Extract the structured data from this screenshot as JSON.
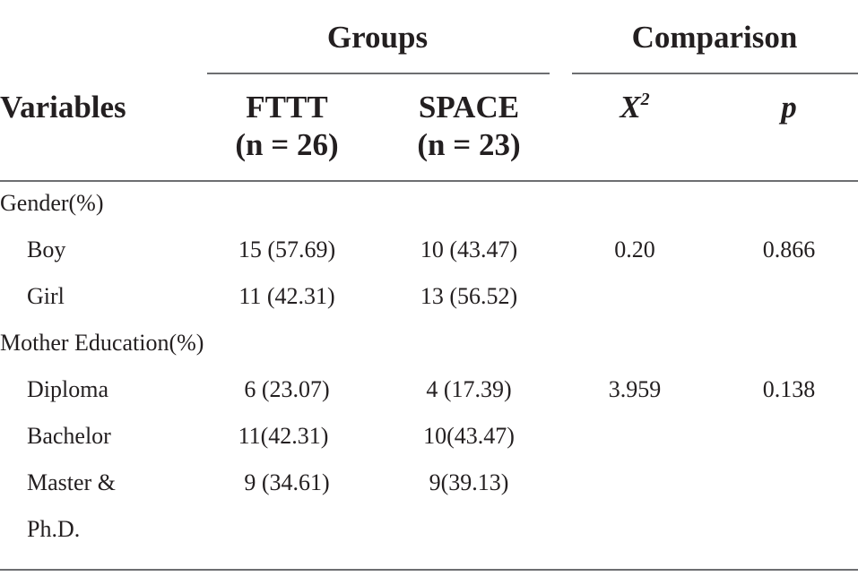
{
  "header": {
    "groups_label": "Groups",
    "comparison_label": "Comparison",
    "variables_label": "Variables",
    "col_fttt": "FTTT",
    "col_fttt_n": "(n = 26)",
    "col_space": "SPACE",
    "col_space_n": "(n = 23)",
    "col_x2": "X",
    "col_x2_sup": "2",
    "col_p": "p"
  },
  "rows": [
    {
      "variable": "Gender(%)",
      "fttt": "",
      "space": "",
      "x2": "",
      "p": ""
    },
    {
      "variable": "Boy",
      "fttt": "15 (57.69)",
      "space": "10 (43.47)",
      "x2": "0.20",
      "p": "0.866"
    },
    {
      "variable": "Girl",
      "fttt": "11 (42.31)",
      "space": "13 (56.52)",
      "x2": "",
      "p": ""
    },
    {
      "variable": "Mother Education(%)",
      "fttt": "",
      "space": "",
      "x2": "",
      "p": ""
    },
    {
      "variable": "Diploma",
      "fttt": "6 (23.07)",
      "space": "4 (17.39)",
      "x2": "3.959",
      "p": "0.138"
    },
    {
      "variable": "Bachelor",
      "fttt": "11(42.31)",
      "space": "10(43.47)",
      "x2": "",
      "p": ""
    },
    {
      "variable": "Master &",
      "fttt": "9 (34.61)",
      "space": "9(39.13)",
      "x2": "",
      "p": ""
    },
    {
      "variable": "Ph.D.",
      "fttt": "",
      "space": "",
      "x2": "",
      "p": ""
    }
  ]
}
